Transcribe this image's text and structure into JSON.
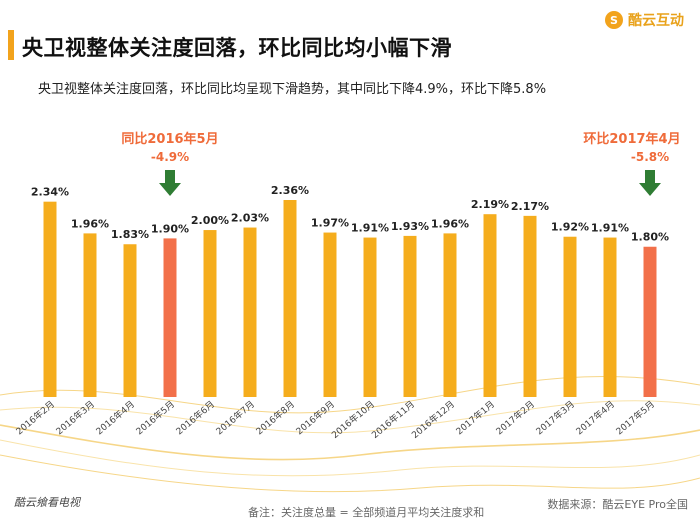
{
  "header": {
    "title": "央卫视整体关注度回落，环比同比均小幅下滑",
    "subtitle": "央卫视整体关注度回落，环比同比均呈现下滑趋势，其中同比下降4.9%，环比下降5.8%",
    "brand": "酷云互动",
    "brand_icon": "brand-logo-icon"
  },
  "footer": {
    "left": "酷云飨看电视",
    "note": "备注：关注度总量 = 全部频道月平均关注度求和",
    "source": "数据来源：酷云EYE Pro全国"
  },
  "colors": {
    "bar": "#f5ad1d",
    "highlight": "#f2704a",
    "arrow": "#2f7d34",
    "annotation": "#ef6b3a"
  },
  "chart_data": {
    "type": "bar",
    "categories": [
      "2016年2月",
      "2016年3月",
      "2016年4月",
      "2016年5月",
      "2016年6月",
      "2016年7月",
      "2016年8月",
      "2016年9月",
      "2016年10月",
      "2016年11月",
      "2016年12月",
      "2017年1月",
      "2017年2月",
      "2017年3月",
      "2017年4月",
      "2017年5月"
    ],
    "values": [
      2.34,
      1.96,
      1.83,
      1.9,
      2.0,
      2.03,
      2.36,
      1.97,
      1.91,
      1.93,
      1.96,
      2.19,
      2.17,
      1.92,
      1.91,
      1.8
    ],
    "value_labels": [
      "2.34%",
      "1.96%",
      "1.83%",
      "1.90%",
      "2.00%",
      "2.03%",
      "2.36%",
      "1.97%",
      "1.91%",
      "1.93%",
      "1.96%",
      "2.19%",
      "2.17%",
      "1.92%",
      "1.91%",
      "1.80%"
    ],
    "highlighted": [
      3,
      15
    ],
    "annotations": [
      {
        "index": 3,
        "label": "同比2016年5月",
        "value": "-4.9%"
      },
      {
        "index": 15,
        "label": "环比2017年4月",
        "value": "-5.8%"
      }
    ],
    "ylim": [
      0,
      2.5
    ]
  }
}
